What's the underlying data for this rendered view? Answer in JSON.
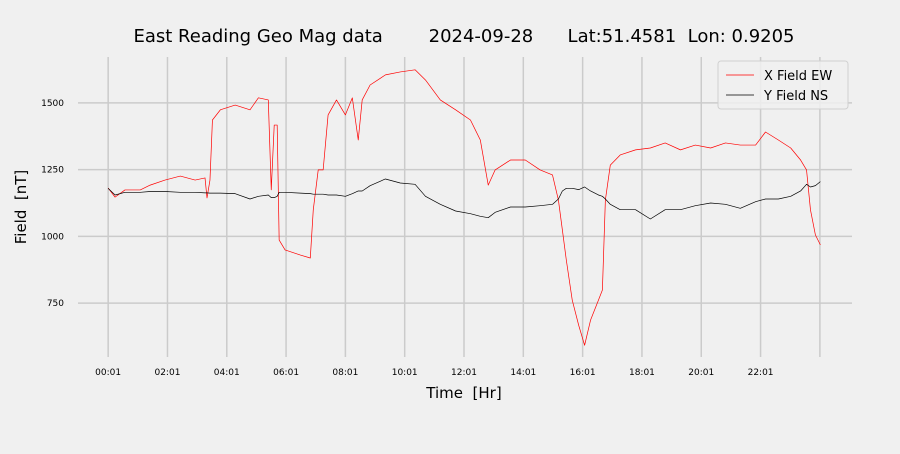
{
  "chart_data": {
    "type": "line",
    "title": "East Reading Geo Mag data        2024-09-28      Lat:51.4581  Lon: 0.9205",
    "xlabel": "Time  [Hr]",
    "ylabel": "Field  [nT]",
    "x": [
      1,
      15,
      35,
      66,
      86,
      116,
      147,
      177,
      197,
      201,
      207,
      212,
      228,
      258,
      288,
      305,
      325,
      331,
      337,
      343,
      347,
      359,
      390,
      410,
      416,
      426,
      436,
      446,
      463,
      481,
      495,
      507,
      515,
      531,
      562,
      592,
      622,
      643,
      673,
      704,
      734,
      754,
      770,
      784,
      815,
      845,
      875,
      900,
      912,
      920,
      928,
      940,
      953,
      965,
      977,
      993,
      1001,
      1007,
      1017,
      1037,
      1068,
      1098,
      1128,
      1159,
      1189,
      1220,
      1250,
      1280,
      1311,
      1331,
      1357,
      1382,
      1402,
      1414,
      1422,
      1432,
      1442
    ],
    "series": [
      {
        "name": "X Field EW",
        "color": "#ff0000",
        "values": [
          1181,
          1147,
          1174,
          1174,
          1192,
          1211,
          1226,
          1211,
          1219,
          1144,
          1211,
          1436,
          1474,
          1492,
          1474,
          1519,
          1511,
          1174,
          1417,
          1417,
          986,
          949,
          930,
          919,
          1099,
          1249,
          1249,
          1455,
          1511,
          1455,
          1519,
          1361,
          1511,
          1567,
          1605,
          1616,
          1624,
          1586,
          1511,
          1474,
          1436,
          1361,
          1192,
          1249,
          1286,
          1286,
          1249,
          1230,
          1136,
          1024,
          911,
          761,
          667,
          592,
          686,
          761,
          799,
          1136,
          1267,
          1305,
          1324,
          1331,
          1350,
          1324,
          1342,
          1331,
          1350,
          1342,
          1342,
          1391,
          1361,
          1331,
          1286,
          1249,
          1099,
          1005,
          968
        ]
      },
      {
        "name": "Y Field NS",
        "color": "#000000",
        "values": [
          1180,
          1155,
          1165,
          1165,
          1168,
          1168,
          1165,
          1165,
          1163,
          1163,
          1162,
          1162,
          1162,
          1160,
          1140,
          1150,
          1155,
          1145,
          1145,
          1150,
          1165,
          1165,
          1162,
          1160,
          1158,
          1158,
          1158,
          1155,
          1155,
          1150,
          1160,
          1170,
          1170,
          1190,
          1215,
          1200,
          1195,
          1150,
          1120,
          1095,
          1085,
          1075,
          1070,
          1090,
          1110,
          1110,
          1115,
          1120,
          1140,
          1170,
          1180,
          1180,
          1175,
          1185,
          1170,
          1155,
          1150,
          1140,
          1120,
          1100,
          1100,
          1065,
          1100,
          1100,
          1115,
          1125,
          1120,
          1105,
          1130,
          1140,
          1140,
          1150,
          1170,
          1195,
          1185,
          1190,
          1205
        ]
      }
    ],
    "xlim": [
      -60,
      1506
    ],
    "ylim": [
      548,
      1672
    ],
    "xticks": [
      {
        "value": 1,
        "label": "00:01"
      },
      {
        "value": 121,
        "label": "02:01"
      },
      {
        "value": 241,
        "label": "04:01"
      },
      {
        "value": 361,
        "label": "06:01"
      },
      {
        "value": 481,
        "label": "08:01"
      },
      {
        "value": 601,
        "label": "10:01"
      },
      {
        "value": 721,
        "label": "12:01"
      },
      {
        "value": 841,
        "label": "14:01"
      },
      {
        "value": 961,
        "label": "16:01"
      },
      {
        "value": 1081,
        "label": "18:01"
      },
      {
        "value": 1201,
        "label": "20:01"
      },
      {
        "value": 1321,
        "label": "22:01"
      },
      {
        "value": 1441,
        "label": null
      }
    ],
    "yticks": [
      750,
      1000,
      1250,
      1500
    ],
    "grid": true,
    "legend": "upper right"
  }
}
